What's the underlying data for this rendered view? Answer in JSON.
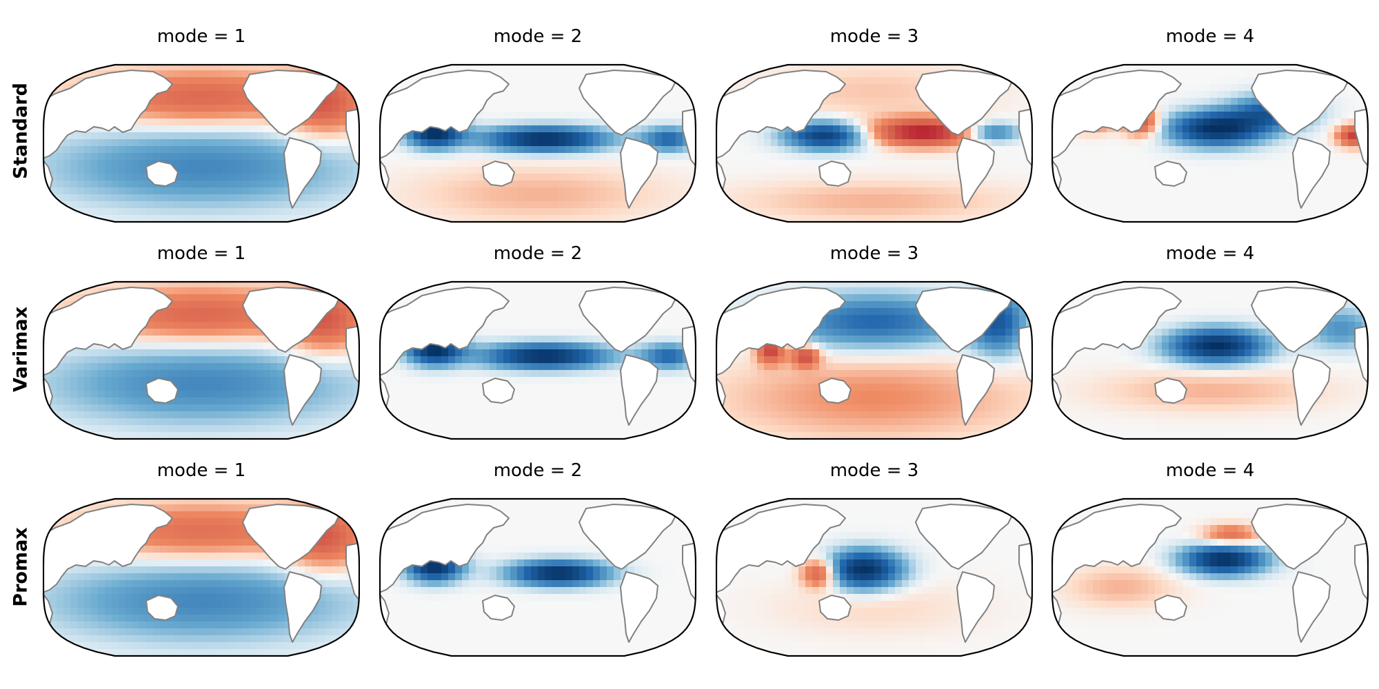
{
  "figure": {
    "rows": [
      {
        "label": "Standard",
        "modes": [
          "mode = 1",
          "mode = 2",
          "mode = 3",
          "mode = 4"
        ]
      },
      {
        "label": "Varimax",
        "modes": [
          "mode = 1",
          "mode = 2",
          "mode = 3",
          "mode = 4"
        ]
      },
      {
        "label": "Promax",
        "modes": [
          "mode = 1",
          "mode = 2",
          "mode = 3",
          "mode = 4"
        ]
      }
    ],
    "map": {
      "projection": "Robinson-like, Pacific-centred",
      "coastline_color": "#808080",
      "border_color": "#000000",
      "land_color": "#ffffff",
      "colormap": "RdBu_r",
      "strong_positive": "#b2182b",
      "positive": "#ef8a62",
      "weak_positive": "#fddbc7",
      "neutral": "#f7f7f7",
      "weak_negative": "#d1e5f0",
      "negative": "#67a9cf",
      "strong_negative": "#053061"
    }
  }
}
